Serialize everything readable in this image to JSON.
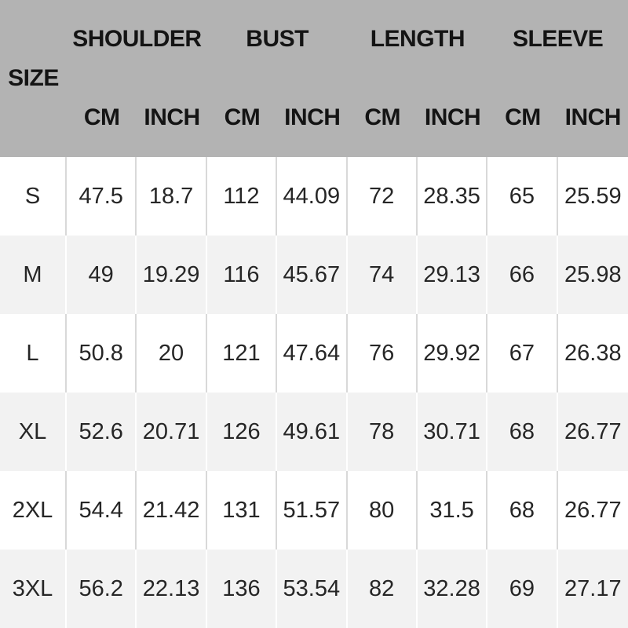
{
  "chart_data": {
    "type": "table",
    "corner_label": "SIZE",
    "column_groups": [
      "SHOULDER",
      "BUST",
      "LENGTH",
      "SLEEVE"
    ],
    "unit_headers": [
      "CM",
      "INCH",
      "CM",
      "INCH",
      "CM",
      "INCH",
      "CM",
      "INCH"
    ],
    "columns": [
      "SIZE",
      "SHOULDER CM",
      "SHOULDER INCH",
      "BUST CM",
      "BUST INCH",
      "LENGTH CM",
      "LENGTH INCH",
      "SLEEVE CM",
      "SLEEVE INCH"
    ],
    "rows": [
      {
        "size": "S",
        "values": [
          "47.5",
          "18.7",
          "112",
          "44.09",
          "72",
          "28.35",
          "65",
          "25.59"
        ]
      },
      {
        "size": "M",
        "values": [
          "49",
          "19.29",
          "116",
          "45.67",
          "74",
          "29.13",
          "66",
          "25.98"
        ]
      },
      {
        "size": "L",
        "values": [
          "50.8",
          "20",
          "121",
          "47.64",
          "76",
          "29.92",
          "67",
          "26.38"
        ]
      },
      {
        "size": "XL",
        "values": [
          "52.6",
          "20.71",
          "126",
          "49.61",
          "78",
          "30.71",
          "68",
          "26.77"
        ]
      },
      {
        "size": "2XL",
        "values": [
          "54.4",
          "21.42",
          "131",
          "51.57",
          "80",
          "31.5",
          "68",
          "26.77"
        ]
      },
      {
        "size": "3XL",
        "values": [
          "56.2",
          "22.13",
          "136",
          "53.54",
          "82",
          "32.28",
          "69",
          "27.17"
        ]
      }
    ]
  },
  "colors": {
    "header_bg": "#b3b3b3",
    "row_bg": "#ffffff",
    "row_alt_bg": "#f2f2f2",
    "divider_on_white": "#d9d9d9",
    "divider_on_gray": "#ffffff",
    "text": "#1f1f1f"
  }
}
